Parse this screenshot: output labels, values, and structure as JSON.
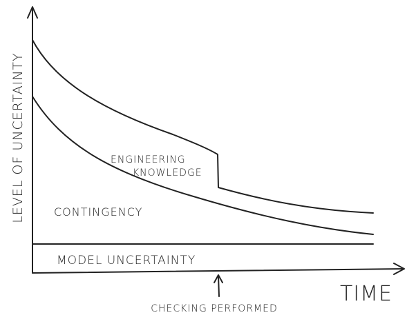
{
  "axes": {
    "y_label": "LEVEL OF UNCERTAINTY",
    "x_label": "TIME"
  },
  "regions": {
    "engineering_knowledge": [
      "ENGINEERING",
      "KNOWLEDGE"
    ],
    "contingency": "CONTINGENCY",
    "model_uncertainty": "MODEL UNCERTAINTY"
  },
  "annotation": "CHECKING PERFORMED"
}
